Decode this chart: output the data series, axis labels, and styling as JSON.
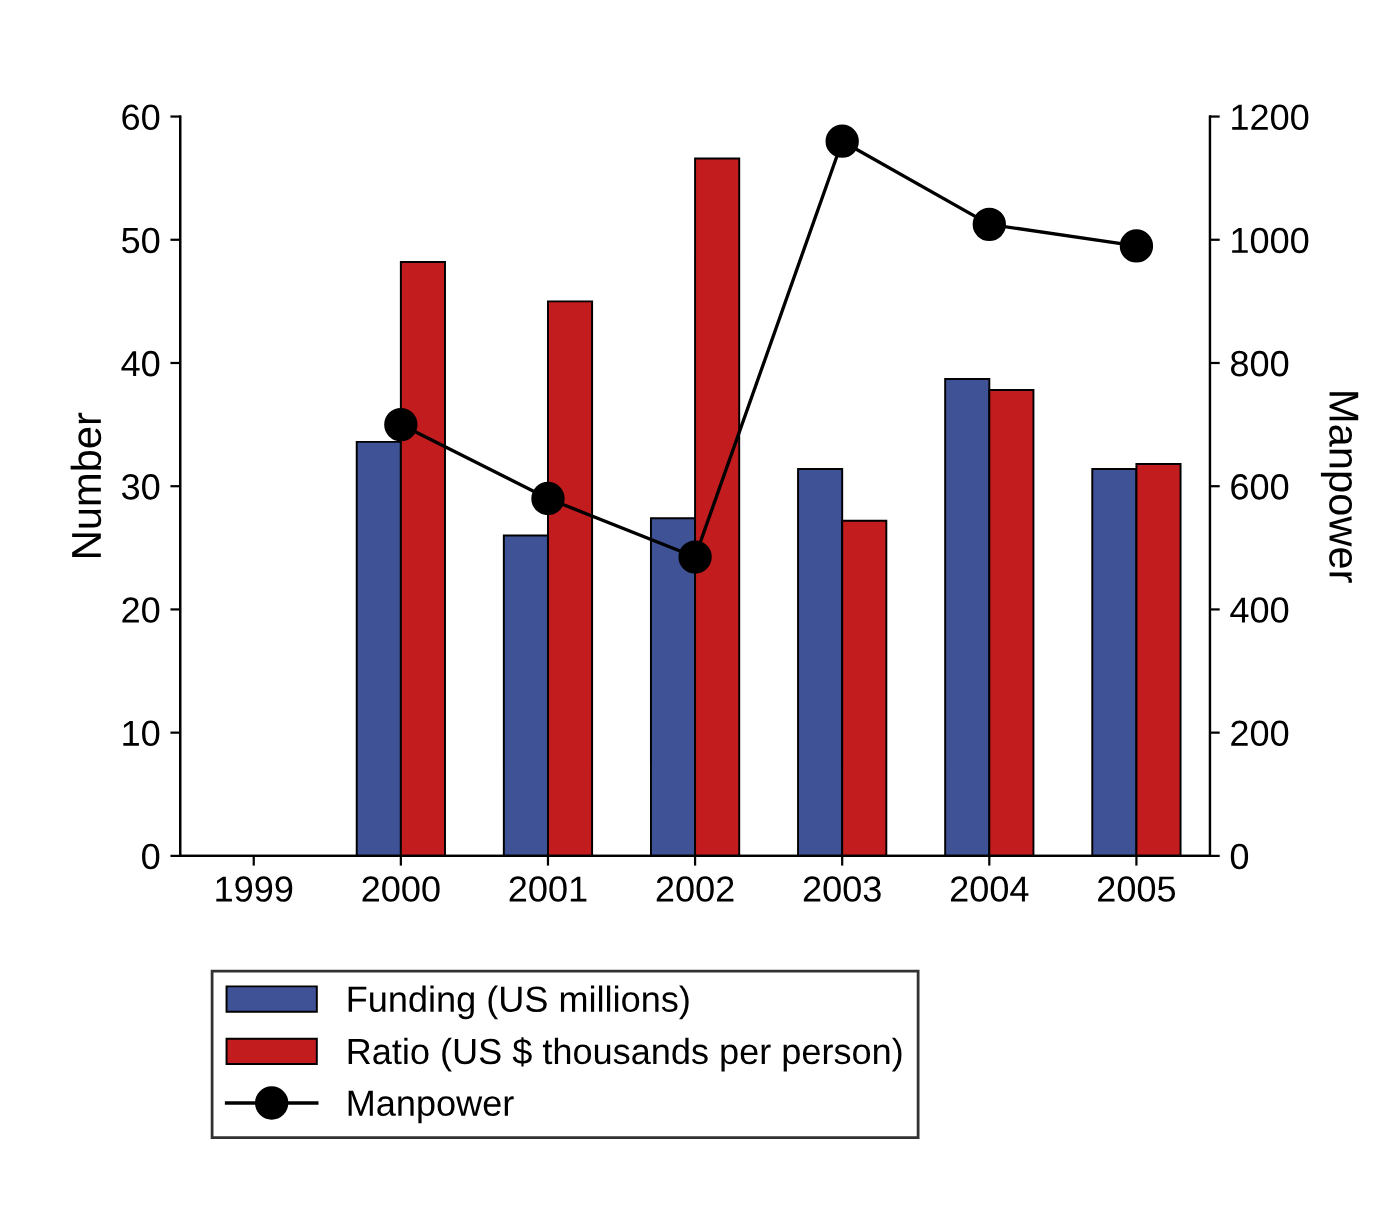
{
  "chart_data": {
    "type": "bar",
    "categories": [
      "1999",
      "2000",
      "2001",
      "2002",
      "2003",
      "2004",
      "2005"
    ],
    "ylabel": "Number",
    "y2label": "Manpower",
    "ylim": [
      0,
      60
    ],
    "yticks": [
      0,
      10,
      20,
      30,
      40,
      50,
      60
    ],
    "y2lim": [
      0,
      1200
    ],
    "y2ticks": [
      0,
      200,
      400,
      600,
      800,
      1000,
      1200
    ],
    "legend": "bottom",
    "grid": false,
    "series": [
      {
        "name": "Funding (US millions)",
        "color": "#3f5296",
        "values": [
          null,
          33.6,
          26,
          27.4,
          31.4,
          38.7,
          31.4
        ]
      },
      {
        "name": "Ratio (US $ thousands per person)",
        "color": "#c21c1f",
        "values": [
          null,
          48.2,
          45,
          56.6,
          27.2,
          37.8,
          31.8
        ]
      },
      {
        "name": "Manpower",
        "type": "line",
        "axis": "y2",
        "color": "#000000",
        "marker": "circle",
        "line_style": "solid",
        "values": [
          null,
          700,
          580,
          485,
          1160,
          1025,
          990
        ]
      }
    ]
  }
}
